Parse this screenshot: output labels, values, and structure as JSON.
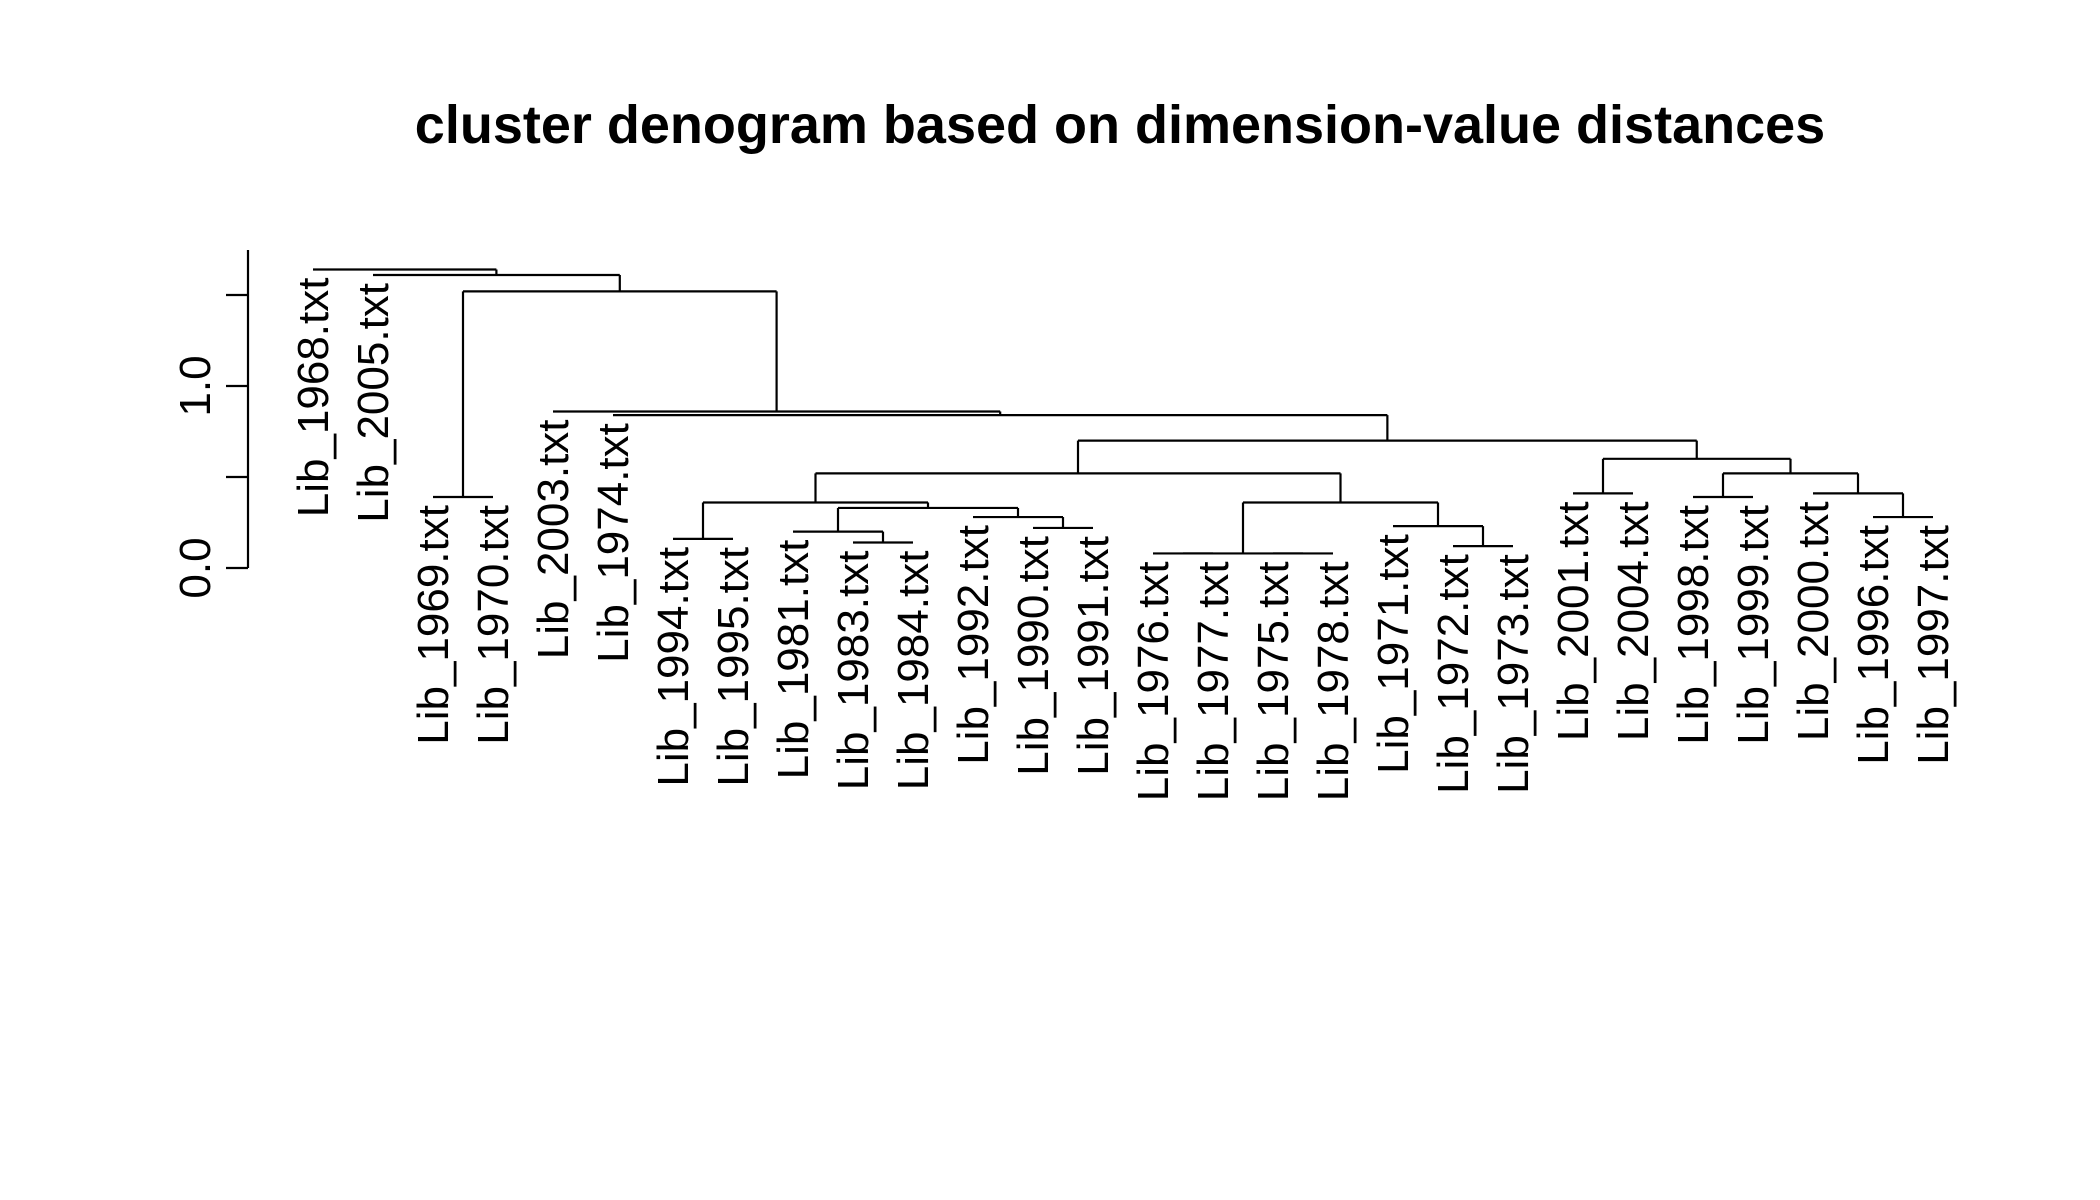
{
  "chart_data": {
    "type": "dendrogram",
    "title": "cluster denogram based on dimension-value distances",
    "xlabel": "",
    "ylabel": "",
    "y_ticks": [
      0.0,
      0.5,
      1.0,
      1.5
    ],
    "y_tick_labels": [
      "0.0",
      "",
      "1.0",
      ""
    ],
    "ylim": [
      0,
      1.75
    ],
    "grid": false,
    "leaves": [
      "Lib_1968.txt",
      "Lib_2005.txt",
      "Lib_1969.txt",
      "Lib_1970.txt",
      "Lib_2003.txt",
      "Lib_1974.txt",
      "Lib_1994.txt",
      "Lib_1995.txt",
      "Lib_1981.txt",
      "Lib_1983.txt",
      "Lib_1984.txt",
      "Lib_1992.txt",
      "Lib_1990.txt",
      "Lib_1991.txt",
      "Lib_1976.txt",
      "Lib_1977.txt",
      "Lib_1975.txt",
      "Lib_1978.txt",
      "Lib_1971.txt",
      "Lib_1972.txt",
      "Lib_1973.txt",
      "Lib_2001.txt",
      "Lib_2004.txt",
      "Lib_1998.txt",
      "Lib_1999.txt",
      "Lib_2000.txt",
      "Lib_1996.txt",
      "Lib_1997.txt"
    ],
    "leaf_heights": [
      1.64,
      1.61,
      0.39,
      0.39,
      0.86,
      0.84,
      0.16,
      0.16,
      0.2,
      0.14,
      0.14,
      0.28,
      0.22,
      0.22,
      0.08,
      0.08,
      0.08,
      0.08,
      0.23,
      0.12,
      0.12,
      0.41,
      0.41,
      0.39,
      0.39,
      0.41,
      0.28,
      0.28
    ],
    "merges": [
      {
        "a": "Lib_1969.txt",
        "b": "Lib_1970.txt",
        "height": 0.39
      },
      {
        "a": "Lib_2001.txt",
        "b": "Lib_2004.txt",
        "height": 0.41
      },
      {
        "a": "Lib_1998.txt",
        "b": "Lib_1999.txt",
        "height": 0.39
      },
      {
        "a": "Lib_1996.txt",
        "b": "Lib_1997.txt",
        "height": 0.28
      },
      {
        "a": "Lib_2000.txt",
        "b": "[Lib_1996.txt, Lib_1997.txt]",
        "height": 0.41
      },
      {
        "a": "[Lib_1998.txt, Lib_1999.txt]",
        "b": "[Lib_2000.txt, Lib_1996.txt, Lib_1997.txt]",
        "height": 0.52
      },
      {
        "a": "[Lib_2001.txt, Lib_2004.txt]",
        "b": "[Lib_1998.txt ... Lib_1997.txt]",
        "height": 0.6
      },
      {
        "a": "Lib_1994.txt",
        "b": "Lib_1995.txt",
        "height": 0.16
      },
      {
        "a": "Lib_1983.txt",
        "b": "Lib_1984.txt",
        "height": 0.14
      },
      {
        "a": "Lib_1981.txt",
        "b": "[Lib_1983.txt, Lib_1984.txt]",
        "height": 0.2
      },
      {
        "a": "Lib_1990.txt",
        "b": "Lib_1991.txt",
        "height": 0.22
      },
      {
        "a": "Lib_1992.txt",
        "b": "[Lib_1990.txt, Lib_1991.txt]",
        "height": 0.28
      },
      {
        "a": "[Lib_1981.txt, Lib_1983.txt, Lib_1984.txt]",
        "b": "[Lib_1992.txt, Lib_1990.txt, Lib_1991.txt]",
        "height": 0.33
      },
      {
        "a": "[Lib_1994.txt, Lib_1995.txt]",
        "b": "[Lib_1981.txt ... Lib_1991.txt]",
        "height": 0.36
      },
      {
        "a": "Lib_1976.txt",
        "b": "Lib_1977.txt",
        "height": 0.08
      },
      {
        "a": "Lib_1975.txt",
        "b": "Lib_1978.txt",
        "height": 0.08
      },
      {
        "a": "[Lib_1976.txt, Lib_1977.txt]",
        "b": "[Lib_1975.txt, Lib_1978.txt]",
        "height": 0.08
      },
      {
        "a": "Lib_1972.txt",
        "b": "Lib_1973.txt",
        "height": 0.12
      },
      {
        "a": "Lib_1971.txt",
        "b": "[Lib_1972.txt, Lib_1973.txt]",
        "height": 0.23
      },
      {
        "a": "[Lib_1976.txt ... Lib_1978.txt]",
        "b": "[Lib_1971.txt, Lib_1972.txt, Lib_1973.txt]",
        "height": 0.36
      },
      {
        "a": "[Lib_1994.txt ... Lib_1991.txt]",
        "b": "[Lib_1976.txt ... Lib_1973.txt]",
        "height": 0.52
      },
      {
        "a": "[Lib_1994.txt ... Lib_1973.txt]",
        "b": "[Lib_2001.txt ... Lib_1997.txt]",
        "height": 0.7
      },
      {
        "a": "Lib_1974.txt",
        "b": "[Lib_1994.txt ... Lib_1997.txt]",
        "height": 0.84
      },
      {
        "a": "Lib_2003.txt",
        "b": "[Lib_1974.txt ... Lib_1997.txt]",
        "height": 0.86
      },
      {
        "a": "[Lib_1969.txt, Lib_1970.txt]",
        "b": "[Lib_2003.txt ... Lib_1997.txt]",
        "height": 1.52
      },
      {
        "a": "Lib_2005.txt",
        "b": "[Lib_1969.txt ... Lib_1997.txt]",
        "height": 1.61
      },
      {
        "a": "Lib_1968.txt",
        "b": "[Lib_2005.txt ... Lib_1997.txt]",
        "height": 1.64
      }
    ]
  }
}
